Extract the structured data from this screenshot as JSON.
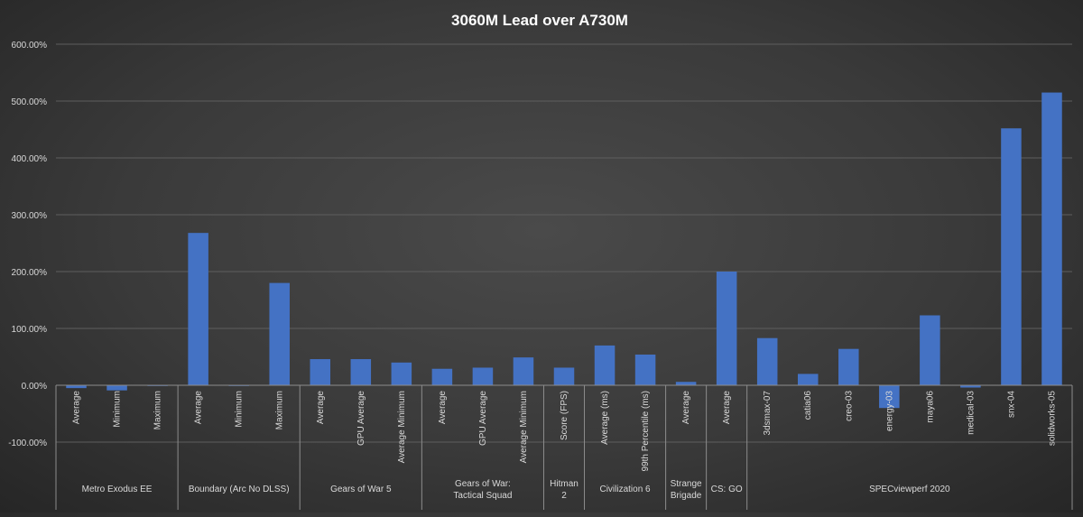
{
  "chart_data": {
    "type": "bar",
    "title": "3060M Lead over A730M",
    "xlabel": "",
    "ylabel": "",
    "ylim": [
      -100,
      600
    ],
    "ytick_step": 100,
    "ytick_labels": [
      "-100.00%",
      "0.00%",
      "100.00%",
      "200.00%",
      "300.00%",
      "400.00%",
      "500.00%",
      "600.00%"
    ],
    "grid": true,
    "legend": "none",
    "bar_color": "#4472c4",
    "groups": [
      {
        "name": "Metro Exodus EE",
        "categories": [
          "Average",
          "Minimum",
          "Maximum"
        ],
        "values": [
          -5,
          -9,
          -0.5
        ]
      },
      {
        "name": "Boundary (Arc No DLSS)",
        "categories": [
          "Average",
          "Minimum",
          "Maximum"
        ],
        "values": [
          268,
          0,
          180
        ]
      },
      {
        "name": "Gears of War 5",
        "categories": [
          "Average",
          "GPU Average",
          "Average Minimum"
        ],
        "values": [
          46,
          46,
          40
        ]
      },
      {
        "name": "Gears of War: Tactical Squad",
        "categories": [
          "Average",
          "GPU Average",
          "Average Minimum"
        ],
        "values": [
          29,
          31,
          49
        ]
      },
      {
        "name": "Hitman 2",
        "categories": [
          "Score (FPS)"
        ],
        "values": [
          31
        ]
      },
      {
        "name": "Civilization 6",
        "categories": [
          "Average (ms)",
          "99th Percentile (ms)"
        ],
        "values": [
          70,
          54
        ]
      },
      {
        "name": "Strange Brigade",
        "categories": [
          "Average"
        ],
        "values": [
          6
        ]
      },
      {
        "name": "CS: GO",
        "categories": [
          "Average"
        ],
        "values": [
          200
        ]
      },
      {
        "name": "SPECviewperf 2020",
        "categories": [
          "3dsmax-07",
          "catia06",
          "creo-03",
          "energy-03",
          "maya06",
          "medical-03",
          "snx-04",
          "solidworks-05"
        ],
        "values": [
          83,
          20,
          64,
          -40,
          123,
          -4,
          452,
          515
        ]
      }
    ]
  }
}
